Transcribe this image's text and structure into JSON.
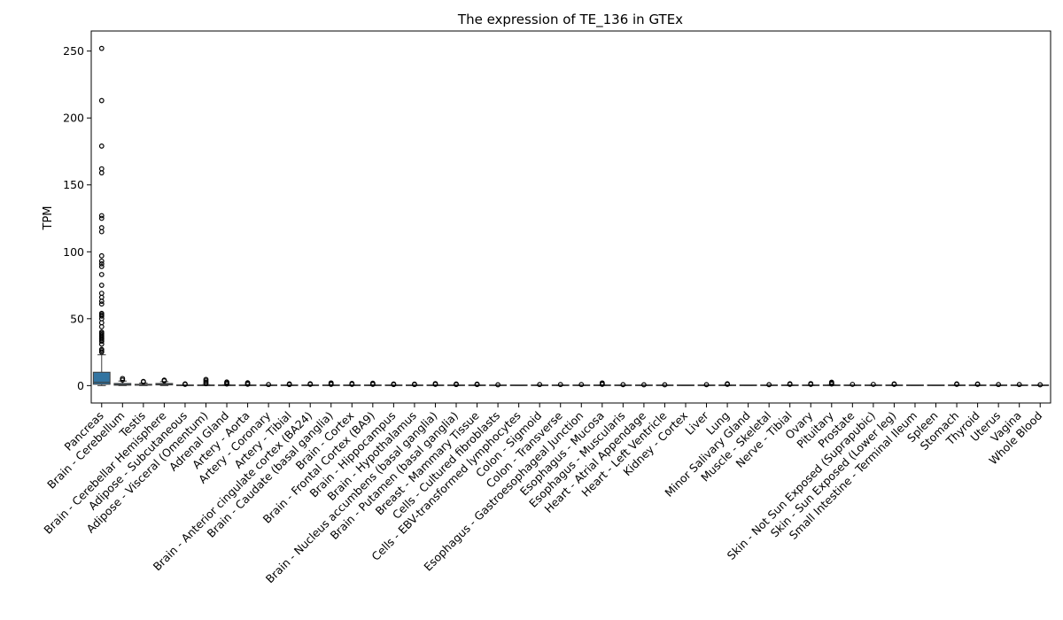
{
  "chart_data": {
    "type": "box",
    "title": "The expression of TE_136 in GTEx",
    "xlabel": "",
    "ylabel": "TPM",
    "ylim": [
      -13,
      265
    ],
    "yticks": [
      0,
      50,
      100,
      150,
      200,
      250
    ],
    "grid": false,
    "box_color": "#3274a1",
    "categories": [
      "Pancreas",
      "Brain - Cerebellum",
      "Testis",
      "Brain - Cerebellar Hemisphere",
      "Adipose - Subcutaneous",
      "Adipose - Visceral (Omentum)",
      "Adrenal Gland",
      "Artery - Aorta",
      "Artery - Coronary",
      "Artery - Tibial",
      "Brain - Anterior cingulate cortex (BA24)",
      "Brain - Caudate (basal ganglia)",
      "Brain - Cortex",
      "Brain - Frontal Cortex (BA9)",
      "Brain - Hippocampus",
      "Brain - Hypothalamus",
      "Brain - Nucleus accumbens (basal ganglia)",
      "Brain - Putamen (basal ganglia)",
      "Breast - Mammary Tissue",
      "Cells - Cultured fibroblasts",
      "Cells - EBV-transformed lymphocytes",
      "Colon - Sigmoid",
      "Colon - Transverse",
      "Esophagus - Gastroesophageal Junction",
      "Esophagus - Mucosa",
      "Esophagus - Muscularis",
      "Heart - Atrial Appendage",
      "Heart - Left Ventricle",
      "Kidney - Cortex",
      "Liver",
      "Lung",
      "Minor Salivary Gland",
      "Muscle - Skeletal",
      "Nerve - Tibial",
      "Ovary",
      "Pituitary",
      "Prostate",
      "Skin - Not Sun Exposed (Suprapubic)",
      "Skin - Sun Exposed (Lower leg)",
      "Small Intestine - Terminal Ileum",
      "Spleen",
      "Stomach",
      "Thyroid",
      "Uterus",
      "Vagina",
      "Whole Blood"
    ],
    "boxes": [
      {
        "q1": 1.0,
        "median": 2.5,
        "q3": 10.0,
        "whislo": 0,
        "whishi": 23.0,
        "fliers": [
          25,
          26,
          27,
          31,
          33,
          34,
          35,
          36,
          37,
          38,
          39,
          40,
          44,
          47,
          50,
          52,
          53,
          54,
          61,
          63,
          66,
          69,
          75,
          83,
          89,
          91,
          93,
          97,
          115,
          118,
          125,
          127,
          159,
          162,
          179,
          213,
          252
        ]
      },
      {
        "q1": 0.3,
        "median": 0.8,
        "q3": 1.6,
        "whislo": 0,
        "whishi": 3.4,
        "fliers": [
          4.2,
          5.3
        ]
      },
      {
        "q1": 0.3,
        "median": 0.6,
        "q3": 1.0,
        "whislo": 0,
        "whishi": 1.9,
        "fliers": [
          2.8,
          3.1
        ]
      },
      {
        "q1": 0.5,
        "median": 0.9,
        "q3": 1.6,
        "whislo": 0,
        "whishi": 3.0,
        "fliers": [
          3.6,
          4.1
        ]
      },
      {
        "q1": 0,
        "median": 0.1,
        "q3": 0.2,
        "whislo": 0,
        "whishi": 0.5,
        "fliers": [
          0.9,
          1.3
        ]
      },
      {
        "q1": 0,
        "median": 0.1,
        "q3": 0.3,
        "whislo": 0,
        "whishi": 0.7,
        "fliers": [
          1.4,
          2.4,
          3.5,
          4.6
        ]
      },
      {
        "q1": 0,
        "median": 0.1,
        "q3": 0.3,
        "whislo": 0,
        "whishi": 0.7,
        "fliers": [
          1.2,
          2.0,
          2.7
        ]
      },
      {
        "q1": 0,
        "median": 0.1,
        "q3": 0.2,
        "whislo": 0,
        "whishi": 0.5,
        "fliers": [
          1.0,
          1.6,
          2.1
        ]
      },
      {
        "q1": 0,
        "median": 0.05,
        "q3": 0.15,
        "whislo": 0,
        "whishi": 0.4,
        "fliers": [
          0.8
        ]
      },
      {
        "q1": 0,
        "median": 0.05,
        "q3": 0.15,
        "whislo": 0,
        "whishi": 0.4,
        "fliers": [
          0.8,
          1.3
        ]
      },
      {
        "q1": 0,
        "median": 0.1,
        "q3": 0.2,
        "whislo": 0,
        "whishi": 0.5,
        "fliers": [
          0.9,
          1.4
        ]
      },
      {
        "q1": 0,
        "median": 0.1,
        "q3": 0.2,
        "whislo": 0,
        "whishi": 0.5,
        "fliers": [
          0.9,
          1.5,
          2.0
        ]
      },
      {
        "q1": 0,
        "median": 0.1,
        "q3": 0.2,
        "whislo": 0,
        "whishi": 0.5,
        "fliers": [
          0.9,
          1.6
        ]
      },
      {
        "q1": 0,
        "median": 0.1,
        "q3": 0.2,
        "whislo": 0,
        "whishi": 0.5,
        "fliers": [
          0.9,
          1.3,
          1.8
        ]
      },
      {
        "q1": 0,
        "median": 0.05,
        "q3": 0.15,
        "whislo": 0,
        "whishi": 0.4,
        "fliers": [
          0.8,
          1.2
        ]
      },
      {
        "q1": 0,
        "median": 0.05,
        "q3": 0.15,
        "whislo": 0,
        "whishi": 0.4,
        "fliers": [
          0.8,
          1.1
        ]
      },
      {
        "q1": 0,
        "median": 0.1,
        "q3": 0.2,
        "whislo": 0,
        "whishi": 0.5,
        "fliers": [
          0.9,
          1.5
        ]
      },
      {
        "q1": 0,
        "median": 0.05,
        "q3": 0.15,
        "whislo": 0,
        "whishi": 0.4,
        "fliers": [
          0.8,
          1.2
        ]
      },
      {
        "q1": 0,
        "median": 0.05,
        "q3": 0.15,
        "whislo": 0,
        "whishi": 0.4,
        "fliers": [
          0.8,
          1.1
        ]
      },
      {
        "q1": 0,
        "median": 0.05,
        "q3": 0.1,
        "whislo": 0,
        "whishi": 0.2,
        "fliers": [
          0.6
        ]
      },
      {
        "q1": 0,
        "median": 0,
        "q3": 0.05,
        "whislo": 0,
        "whishi": 0.1,
        "fliers": []
      },
      {
        "q1": 0,
        "median": 0.05,
        "q3": 0.15,
        "whislo": 0,
        "whishi": 0.4,
        "fliers": [
          0.8
        ]
      },
      {
        "q1": 0,
        "median": 0.05,
        "q3": 0.15,
        "whislo": 0,
        "whishi": 0.4,
        "fliers": [
          0.8
        ]
      },
      {
        "q1": 0,
        "median": 0.05,
        "q3": 0.15,
        "whislo": 0,
        "whishi": 0.4,
        "fliers": [
          0.8
        ]
      },
      {
        "q1": 0,
        "median": 0.1,
        "q3": 0.2,
        "whislo": 0,
        "whishi": 0.5,
        "fliers": [
          0.9,
          1.4,
          2.0
        ]
      },
      {
        "q1": 0,
        "median": 0.05,
        "q3": 0.1,
        "whislo": 0,
        "whishi": 0.3,
        "fliers": [
          0.7
        ]
      },
      {
        "q1": 0,
        "median": 0.05,
        "q3": 0.1,
        "whislo": 0,
        "whishi": 0.3,
        "fliers": [
          0.6
        ]
      },
      {
        "q1": 0,
        "median": 0.05,
        "q3": 0.1,
        "whislo": 0,
        "whishi": 0.3,
        "fliers": [
          0.6
        ]
      },
      {
        "q1": 0,
        "median": 0,
        "q3": 0.05,
        "whislo": 0,
        "whishi": 0.1,
        "fliers": []
      },
      {
        "q1": 0,
        "median": 0.05,
        "q3": 0.1,
        "whislo": 0,
        "whishi": 0.3,
        "fliers": [
          0.7
        ]
      },
      {
        "q1": 0,
        "median": 0.1,
        "q3": 0.2,
        "whislo": 0,
        "whishi": 0.5,
        "fliers": [
          0.9,
          1.4
        ]
      },
      {
        "q1": 0,
        "median": 0,
        "q3": 0.05,
        "whislo": 0,
        "whishi": 0.1,
        "fliers": []
      },
      {
        "q1": 0,
        "median": 0.05,
        "q3": 0.1,
        "whislo": 0,
        "whishi": 0.3,
        "fliers": [
          0.7
        ]
      },
      {
        "q1": 0,
        "median": 0.1,
        "q3": 0.2,
        "whislo": 0,
        "whishi": 0.5,
        "fliers": [
          0.9,
          1.4
        ]
      },
      {
        "q1": 0,
        "median": 0.1,
        "q3": 0.2,
        "whislo": 0,
        "whishi": 0.5,
        "fliers": [
          0.9,
          1.5
        ]
      },
      {
        "q1": 0,
        "median": 0.1,
        "q3": 0.3,
        "whislo": 0,
        "whishi": 0.7,
        "fliers": [
          1.2,
          1.8,
          2.5
        ]
      },
      {
        "q1": 0,
        "median": 0.1,
        "q3": 0.2,
        "whislo": 0,
        "whishi": 0.5,
        "fliers": [
          0.9
        ]
      },
      {
        "q1": 0,
        "median": 0.1,
        "q3": 0.2,
        "whislo": 0,
        "whishi": 0.5,
        "fliers": [
          0.9
        ]
      },
      {
        "q1": 0,
        "median": 0.1,
        "q3": 0.2,
        "whislo": 0,
        "whishi": 0.5,
        "fliers": [
          0.9,
          1.3
        ]
      },
      {
        "q1": 0,
        "median": 0,
        "q3": 0.05,
        "whislo": 0,
        "whishi": 0.1,
        "fliers": []
      },
      {
        "q1": 0,
        "median": 0,
        "q3": 0.05,
        "whislo": 0,
        "whishi": 0.1,
        "fliers": []
      },
      {
        "q1": 0,
        "median": 0.1,
        "q3": 0.2,
        "whislo": 0,
        "whishi": 0.5,
        "fliers": [
          0.9,
          1.3
        ]
      },
      {
        "q1": 0,
        "median": 0.1,
        "q3": 0.2,
        "whislo": 0,
        "whishi": 0.5,
        "fliers": [
          0.9,
          1.2
        ]
      },
      {
        "q1": 0,
        "median": 0.05,
        "q3": 0.15,
        "whislo": 0,
        "whishi": 0.4,
        "fliers": [
          0.8
        ]
      },
      {
        "q1": 0,
        "median": 0.05,
        "q3": 0.15,
        "whislo": 0,
        "whishi": 0.4,
        "fliers": [
          0.8
        ]
      },
      {
        "q1": 0,
        "median": 0.05,
        "q3": 0.1,
        "whislo": 0,
        "whishi": 0.3,
        "fliers": [
          0.6
        ]
      }
    ]
  }
}
